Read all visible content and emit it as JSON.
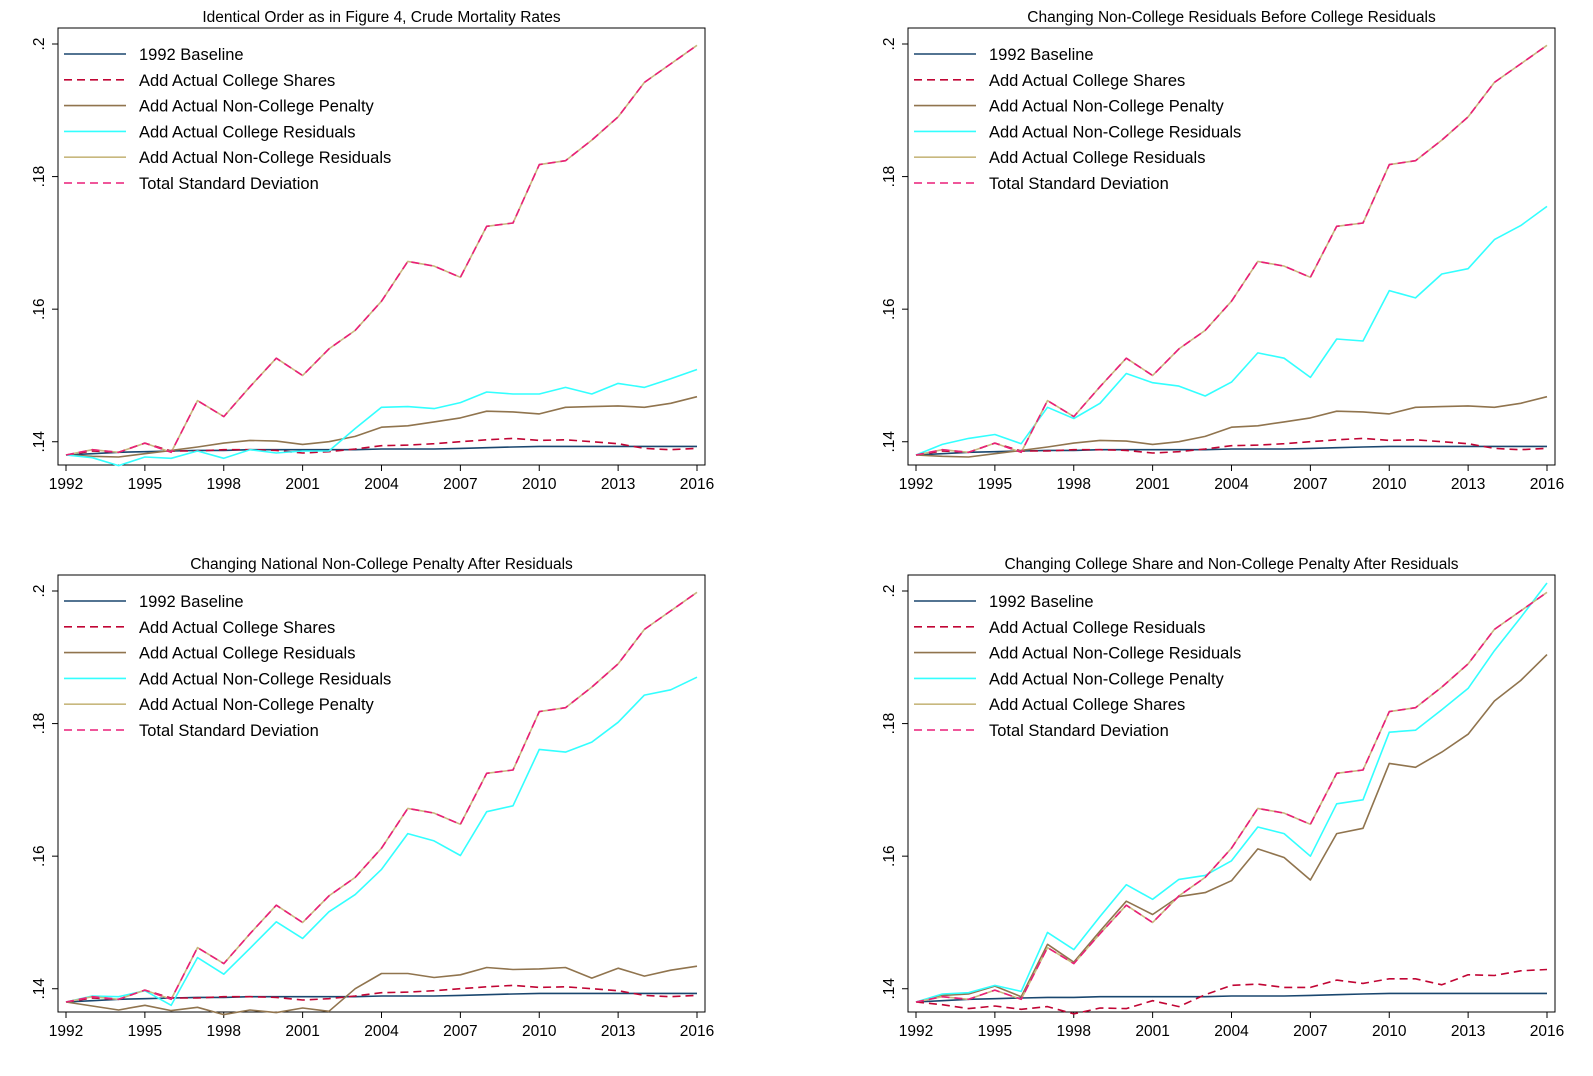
{
  "chart_data": [
    {
      "type": "line",
      "title": "Identical Order as in Figure 4, Crude Mortality Rates",
      "xlabel": "",
      "ylabel": "",
      "x_ticks": [
        "1992",
        "1995",
        "1998",
        "2001",
        "2004",
        "2007",
        "2010",
        "2013",
        "2016"
      ],
      "y_ticks": [
        ".14",
        ".16",
        ".18",
        ".2"
      ],
      "xlim": [
        1992,
        2016
      ],
      "ylim": [
        0.138,
        0.2
      ],
      "grid": false,
      "legend_position": "top-left",
      "x": [
        1992,
        1993,
        1994,
        1995,
        1996,
        1997,
        1998,
        1999,
        2000,
        2001,
        2002,
        2003,
        2004,
        2005,
        2006,
        2007,
        2008,
        2009,
        2010,
        2011,
        2012,
        2013,
        2014,
        2015,
        2016
      ],
      "series": [
        {
          "name": "1992 Baseline",
          "color": "#1a476f",
          "dash": "solid",
          "values": [
            0.138,
            0.1382,
            0.1384,
            0.1385,
            0.1386,
            0.1387,
            0.1387,
            0.1388,
            0.1388,
            0.1388,
            0.1388,
            0.1388,
            0.1389,
            0.1389,
            0.1389,
            0.139,
            0.1391,
            0.1392,
            0.1393,
            0.1393,
            0.1393,
            0.1393,
            0.1393,
            0.1393,
            0.1393
          ]
        },
        {
          "name": "Add Actual College Shares",
          "color": "#c10534",
          "dash": "dashed",
          "values": [
            0.138,
            0.1386,
            0.1384,
            0.1398,
            0.1386,
            0.1386,
            0.1388,
            0.1388,
            0.1387,
            0.1383,
            0.1385,
            0.1389,
            0.1394,
            0.1395,
            0.1397,
            0.14,
            0.1403,
            0.1405,
            0.1402,
            0.1403,
            0.14,
            0.1397,
            0.139,
            0.1388,
            0.139
          ]
        },
        {
          "name": "Add Actual Non-College Penalty",
          "color": "#90744e",
          "dash": "solid",
          "values": [
            0.138,
            0.1378,
            0.1377,
            0.1382,
            0.1387,
            0.1392,
            0.1398,
            0.1402,
            0.1401,
            0.1396,
            0.14,
            0.1408,
            0.1422,
            0.1424,
            0.143,
            0.1436,
            0.1446,
            0.1445,
            0.1442,
            0.1452,
            0.1453,
            0.1454,
            0.1452,
            0.1458,
            0.1468
          ]
        },
        {
          "name": "Add Actual College Residuals",
          "color": "#33ffff",
          "dash": "solid",
          "values": [
            0.138,
            0.1376,
            0.1364,
            0.1377,
            0.1375,
            0.1386,
            0.1375,
            0.1388,
            0.1383,
            0.1386,
            0.1386,
            0.142,
            0.1452,
            0.1453,
            0.145,
            0.1459,
            0.1475,
            0.1472,
            0.1472,
            0.1482,
            0.1472,
            0.1488,
            0.1482,
            0.1495,
            0.1509
          ]
        },
        {
          "name": "Add Actual Non-College Residuals",
          "color": "#c8b87e",
          "dash": "solid",
          "values": [
            0.138,
            0.1388,
            0.1384,
            0.1398,
            0.1384,
            0.1462,
            0.1438,
            0.1483,
            0.1526,
            0.15,
            0.154,
            0.1568,
            0.1612,
            0.1672,
            0.1665,
            0.1648,
            0.1725,
            0.173,
            0.1818,
            0.1824,
            0.1855,
            0.189,
            0.1942,
            0.197,
            0.1998
          ]
        },
        {
          "name": "Total Standard Deviation",
          "color": "#ea1f78",
          "dash": "dashed",
          "values": [
            0.138,
            0.1388,
            0.1384,
            0.1398,
            0.1384,
            0.1462,
            0.1438,
            0.1483,
            0.1526,
            0.15,
            0.154,
            0.1568,
            0.1612,
            0.1672,
            0.1665,
            0.1648,
            0.1725,
            0.173,
            0.1818,
            0.1824,
            0.1855,
            0.189,
            0.1942,
            0.197,
            0.1998
          ]
        }
      ]
    },
    {
      "type": "line",
      "title": "Changing Non-College Residuals Before College Residuals",
      "xlabel": "",
      "ylabel": "",
      "x_ticks": [
        "1992",
        "1995",
        "1998",
        "2001",
        "2004",
        "2007",
        "2010",
        "2013",
        "2016"
      ],
      "y_ticks": [
        ".14",
        ".16",
        ".18",
        ".2"
      ],
      "xlim": [
        1992,
        2016
      ],
      "ylim": [
        0.138,
        0.2
      ],
      "grid": false,
      "legend_position": "top-left",
      "x": [
        1992,
        1993,
        1994,
        1995,
        1996,
        1997,
        1998,
        1999,
        2000,
        2001,
        2002,
        2003,
        2004,
        2005,
        2006,
        2007,
        2008,
        2009,
        2010,
        2011,
        2012,
        2013,
        2014,
        2015,
        2016
      ],
      "series": [
        {
          "name": "1992 Baseline",
          "color": "#1a476f",
          "dash": "solid",
          "values": [
            0.138,
            0.1382,
            0.1384,
            0.1385,
            0.1386,
            0.1387,
            0.1387,
            0.1388,
            0.1388,
            0.1388,
            0.1388,
            0.1388,
            0.1389,
            0.1389,
            0.1389,
            0.139,
            0.1391,
            0.1392,
            0.1393,
            0.1393,
            0.1393,
            0.1393,
            0.1393,
            0.1393,
            0.1393
          ]
        },
        {
          "name": "Add Actual College Shares",
          "color": "#c10534",
          "dash": "dashed",
          "values": [
            0.138,
            0.1386,
            0.1384,
            0.1398,
            0.1386,
            0.1386,
            0.1388,
            0.1388,
            0.1387,
            0.1383,
            0.1385,
            0.1389,
            0.1394,
            0.1395,
            0.1397,
            0.14,
            0.1403,
            0.1405,
            0.1402,
            0.1403,
            0.14,
            0.1397,
            0.139,
            0.1388,
            0.139
          ]
        },
        {
          "name": "Add Actual Non-College Penalty",
          "color": "#90744e",
          "dash": "solid",
          "values": [
            0.138,
            0.1378,
            0.1377,
            0.1382,
            0.1387,
            0.1392,
            0.1398,
            0.1402,
            0.1401,
            0.1396,
            0.14,
            0.1408,
            0.1422,
            0.1424,
            0.143,
            0.1436,
            0.1446,
            0.1445,
            0.1442,
            0.1452,
            0.1453,
            0.1454,
            0.1452,
            0.1458,
            0.1468
          ]
        },
        {
          "name": "Add Actual Non-College Residuals",
          "color": "#33ffff",
          "dash": "solid",
          "values": [
            0.138,
            0.1396,
            0.1405,
            0.1411,
            0.1397,
            0.1452,
            0.1435,
            0.1458,
            0.1503,
            0.1489,
            0.1484,
            0.1469,
            0.149,
            0.1534,
            0.1526,
            0.1497,
            0.1555,
            0.1552,
            0.1628,
            0.1617,
            0.1653,
            0.1661,
            0.1705,
            0.1726,
            0.1755
          ]
        },
        {
          "name": "Add Actual College Residuals",
          "color": "#c8b87e",
          "dash": "solid",
          "values": [
            0.138,
            0.1388,
            0.1384,
            0.1398,
            0.1384,
            0.1462,
            0.1438,
            0.1483,
            0.1526,
            0.15,
            0.154,
            0.1568,
            0.1612,
            0.1672,
            0.1665,
            0.1648,
            0.1725,
            0.173,
            0.1818,
            0.1824,
            0.1855,
            0.189,
            0.1942,
            0.197,
            0.1998
          ]
        },
        {
          "name": "Total Standard Deviation",
          "color": "#ea1f78",
          "dash": "dashed",
          "values": [
            0.138,
            0.1388,
            0.1384,
            0.1398,
            0.1384,
            0.1462,
            0.1438,
            0.1483,
            0.1526,
            0.15,
            0.154,
            0.1568,
            0.1612,
            0.1672,
            0.1665,
            0.1648,
            0.1725,
            0.173,
            0.1818,
            0.1824,
            0.1855,
            0.189,
            0.1942,
            0.197,
            0.1998
          ]
        }
      ]
    },
    {
      "type": "line",
      "title": "Changing National Non-College Penalty After Residuals",
      "xlabel": "",
      "ylabel": "",
      "x_ticks": [
        "1992",
        "1995",
        "1998",
        "2001",
        "2004",
        "2007",
        "2010",
        "2013",
        "2016"
      ],
      "y_ticks": [
        ".14",
        ".16",
        ".18",
        ".2"
      ],
      "xlim": [
        1992,
        2016
      ],
      "ylim": [
        0.138,
        0.2
      ],
      "grid": false,
      "legend_position": "top-left",
      "x": [
        1992,
        1993,
        1994,
        1995,
        1996,
        1997,
        1998,
        1999,
        2000,
        2001,
        2002,
        2003,
        2004,
        2005,
        2006,
        2007,
        2008,
        2009,
        2010,
        2011,
        2012,
        2013,
        2014,
        2015,
        2016
      ],
      "series": [
        {
          "name": "1992 Baseline",
          "color": "#1a476f",
          "dash": "solid",
          "values": [
            0.138,
            0.1382,
            0.1384,
            0.1385,
            0.1386,
            0.1387,
            0.1387,
            0.1388,
            0.1388,
            0.1388,
            0.1388,
            0.1388,
            0.1389,
            0.1389,
            0.1389,
            0.139,
            0.1391,
            0.1392,
            0.1393,
            0.1393,
            0.1393,
            0.1393,
            0.1393,
            0.1393,
            0.1393
          ]
        },
        {
          "name": "Add Actual College Shares",
          "color": "#c10534",
          "dash": "dashed",
          "values": [
            0.138,
            0.1386,
            0.1384,
            0.1398,
            0.1386,
            0.1386,
            0.1388,
            0.1388,
            0.1387,
            0.1383,
            0.1385,
            0.1389,
            0.1394,
            0.1395,
            0.1397,
            0.14,
            0.1403,
            0.1405,
            0.1402,
            0.1403,
            0.14,
            0.1397,
            0.139,
            0.1388,
            0.139
          ]
        },
        {
          "name": "Add Actual College Residuals",
          "color": "#90744e",
          "dash": "solid",
          "values": [
            0.138,
            0.1374,
            0.1368,
            0.1375,
            0.1367,
            0.1372,
            0.1361,
            0.1368,
            0.1364,
            0.1371,
            0.1366,
            0.14,
            0.1423,
            0.1423,
            0.1417,
            0.1421,
            0.1432,
            0.1429,
            0.143,
            0.1432,
            0.1416,
            0.1431,
            0.1419,
            0.1428,
            0.1434
          ]
        },
        {
          "name": "Add Actual Non-College Residuals",
          "color": "#33ffff",
          "dash": "solid",
          "values": [
            0.138,
            0.1389,
            0.1388,
            0.1397,
            0.1375,
            0.1447,
            0.1422,
            0.1461,
            0.1501,
            0.1476,
            0.1516,
            0.1542,
            0.158,
            0.1634,
            0.1623,
            0.1601,
            0.1667,
            0.1676,
            0.1761,
            0.1757,
            0.1772,
            0.1802,
            0.1843,
            0.1851,
            0.187
          ]
        },
        {
          "name": "Add Actual Non-College Penalty",
          "color": "#c8b87e",
          "dash": "solid",
          "values": [
            0.138,
            0.1388,
            0.1384,
            0.1398,
            0.1384,
            0.1462,
            0.1438,
            0.1483,
            0.1526,
            0.15,
            0.154,
            0.1568,
            0.1612,
            0.1672,
            0.1665,
            0.1648,
            0.1725,
            0.173,
            0.1818,
            0.1824,
            0.1855,
            0.189,
            0.1942,
            0.197,
            0.1998
          ]
        },
        {
          "name": "Total Standard Deviation",
          "color": "#ea1f78",
          "dash": "dashed",
          "values": [
            0.138,
            0.1388,
            0.1384,
            0.1398,
            0.1384,
            0.1462,
            0.1438,
            0.1483,
            0.1526,
            0.15,
            0.154,
            0.1568,
            0.1612,
            0.1672,
            0.1665,
            0.1648,
            0.1725,
            0.173,
            0.1818,
            0.1824,
            0.1855,
            0.189,
            0.1942,
            0.197,
            0.1998
          ]
        }
      ]
    },
    {
      "type": "line",
      "title": "Changing College Share and Non-College Penalty After Residuals",
      "xlabel": "",
      "ylabel": "",
      "x_ticks": [
        "1992",
        "1995",
        "1998",
        "2001",
        "2004",
        "2007",
        "2010",
        "2013",
        "2016"
      ],
      "y_ticks": [
        ".14",
        ".16",
        ".18",
        ".2"
      ],
      "xlim": [
        1992,
        2016
      ],
      "ylim": [
        0.138,
        0.2
      ],
      "grid": false,
      "legend_position": "top-left",
      "x": [
        1992,
        1993,
        1994,
        1995,
        1996,
        1997,
        1998,
        1999,
        2000,
        2001,
        2002,
        2003,
        2004,
        2005,
        2006,
        2007,
        2008,
        2009,
        2010,
        2011,
        2012,
        2013,
        2014,
        2015,
        2016
      ],
      "series": [
        {
          "name": "1992 Baseline",
          "color": "#1a476f",
          "dash": "solid",
          "values": [
            0.138,
            0.1382,
            0.1384,
            0.1385,
            0.1386,
            0.1387,
            0.1387,
            0.1388,
            0.1388,
            0.1388,
            0.1388,
            0.1388,
            0.1389,
            0.1389,
            0.1389,
            0.139,
            0.1391,
            0.1392,
            0.1393,
            0.1393,
            0.1393,
            0.1393,
            0.1393,
            0.1393,
            0.1393
          ]
        },
        {
          "name": "Add Actual College Residuals",
          "color": "#c10534",
          "dash": "dashed",
          "values": [
            0.138,
            0.1376,
            0.137,
            0.1374,
            0.1369,
            0.1373,
            0.1362,
            0.1371,
            0.137,
            0.1382,
            0.1373,
            0.1391,
            0.1405,
            0.1407,
            0.1402,
            0.1402,
            0.1413,
            0.1408,
            0.1415,
            0.1415,
            0.1406,
            0.1421,
            0.142,
            0.1427,
            0.1429
          ]
        },
        {
          "name": "Add Actual Non-College Residuals",
          "color": "#90744e",
          "dash": "solid",
          "values": [
            0.138,
            0.139,
            0.1392,
            0.1404,
            0.1388,
            0.1467,
            0.144,
            0.1487,
            0.1532,
            0.1512,
            0.1539,
            0.1545,
            0.1563,
            0.1611,
            0.1598,
            0.1564,
            0.1634,
            0.1642,
            0.174,
            0.1734,
            0.1757,
            0.1784,
            0.1834,
            0.1865,
            0.1904
          ]
        },
        {
          "name": "Add Actual Non-College Penalty",
          "color": "#33ffff",
          "dash": "solid",
          "values": [
            0.138,
            0.1392,
            0.1394,
            0.1405,
            0.1396,
            0.1485,
            0.1459,
            0.1509,
            0.1557,
            0.1535,
            0.1565,
            0.1571,
            0.1593,
            0.1644,
            0.1634,
            0.16,
            0.1679,
            0.1685,
            0.1787,
            0.179,
            0.1821,
            0.1853,
            0.191,
            0.196,
            0.2012
          ]
        },
        {
          "name": "Add Actual College Shares",
          "color": "#c8b87e",
          "dash": "solid",
          "values": [
            0.138,
            0.1388,
            0.1384,
            0.1398,
            0.1384,
            0.1462,
            0.1438,
            0.1483,
            0.1526,
            0.15,
            0.154,
            0.1568,
            0.1612,
            0.1672,
            0.1665,
            0.1648,
            0.1725,
            0.173,
            0.1818,
            0.1824,
            0.1855,
            0.189,
            0.1942,
            0.197,
            0.1998
          ]
        },
        {
          "name": "Total Standard Deviation",
          "color": "#ea1f78",
          "dash": "dashed",
          "values": [
            0.138,
            0.1388,
            0.1384,
            0.1398,
            0.1384,
            0.1462,
            0.1438,
            0.1483,
            0.1526,
            0.15,
            0.154,
            0.1568,
            0.1612,
            0.1672,
            0.1665,
            0.1648,
            0.1725,
            0.173,
            0.1818,
            0.1824,
            0.1855,
            0.189,
            0.1942,
            0.197,
            0.1998
          ]
        }
      ]
    }
  ]
}
